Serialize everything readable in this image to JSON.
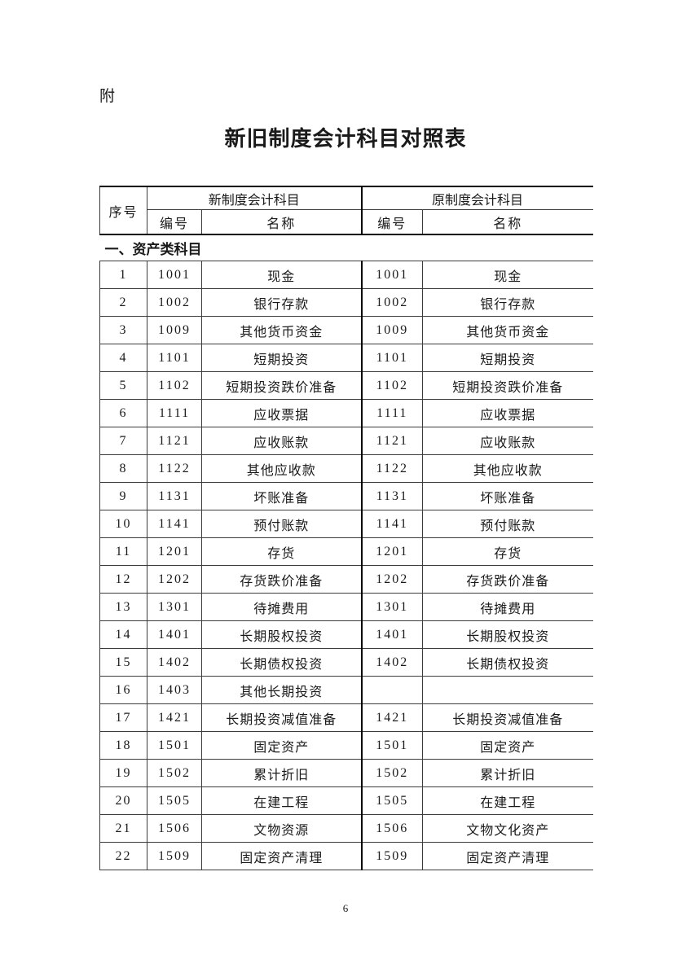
{
  "page": {
    "attachment_label": "附",
    "title": "新旧制度会计科目对照表",
    "page_number": "6"
  },
  "table": {
    "header": {
      "serial": "序号",
      "new_system": "新制度会计科目",
      "old_system": "原制度会计科目",
      "code": "编号",
      "name": "名称"
    },
    "section_title": "一、资产类科目",
    "rows": [
      {
        "no": "1",
        "new_code": "1001",
        "new_name": "现金",
        "old_code": "1001",
        "old_name": "现金"
      },
      {
        "no": "2",
        "new_code": "1002",
        "new_name": "银行存款",
        "old_code": "1002",
        "old_name": "银行存款"
      },
      {
        "no": "3",
        "new_code": "1009",
        "new_name": "其他货币资金",
        "old_code": "1009",
        "old_name": "其他货币资金"
      },
      {
        "no": "4",
        "new_code": "1101",
        "new_name": "短期投资",
        "old_code": "1101",
        "old_name": "短期投资"
      },
      {
        "no": "5",
        "new_code": "1102",
        "new_name": "短期投资跌价准备",
        "old_code": "1102",
        "old_name": "短期投资跌价准备"
      },
      {
        "no": "6",
        "new_code": "1111",
        "new_name": "应收票据",
        "old_code": "1111",
        "old_name": "应收票据"
      },
      {
        "no": "7",
        "new_code": "1121",
        "new_name": "应收账款",
        "old_code": "1121",
        "old_name": "应收账款"
      },
      {
        "no": "8",
        "new_code": "1122",
        "new_name": "其他应收款",
        "old_code": "1122",
        "old_name": "其他应收款"
      },
      {
        "no": "9",
        "new_code": "1131",
        "new_name": "坏账准备",
        "old_code": "1131",
        "old_name": "坏账准备"
      },
      {
        "no": "10",
        "new_code": "1141",
        "new_name": "预付账款",
        "old_code": "1141",
        "old_name": "预付账款"
      },
      {
        "no": "11",
        "new_code": "1201",
        "new_name": "存货",
        "old_code": "1201",
        "old_name": "存货"
      },
      {
        "no": "12",
        "new_code": "1202",
        "new_name": "存货跌价准备",
        "old_code": "1202",
        "old_name": "存货跌价准备"
      },
      {
        "no": "13",
        "new_code": "1301",
        "new_name": "待摊费用",
        "old_code": "1301",
        "old_name": "待摊费用"
      },
      {
        "no": "14",
        "new_code": "1401",
        "new_name": "长期股权投资",
        "old_code": "1401",
        "old_name": "长期股权投资"
      },
      {
        "no": "15",
        "new_code": "1402",
        "new_name": "长期债权投资",
        "old_code": "1402",
        "old_name": "长期债权投资"
      },
      {
        "no": "16",
        "new_code": "1403",
        "new_name": "其他长期投资",
        "old_code": "",
        "old_name": ""
      },
      {
        "no": "17",
        "new_code": "1421",
        "new_name": "长期投资减值准备",
        "old_code": "1421",
        "old_name": "长期投资减值准备"
      },
      {
        "no": "18",
        "new_code": "1501",
        "new_name": "固定资产",
        "old_code": "1501",
        "old_name": "固定资产"
      },
      {
        "no": "19",
        "new_code": "1502",
        "new_name": "累计折旧",
        "old_code": "1502",
        "old_name": "累计折旧"
      },
      {
        "no": "20",
        "new_code": "1505",
        "new_name": "在建工程",
        "old_code": "1505",
        "old_name": "在建工程"
      },
      {
        "no": "21",
        "new_code": "1506",
        "new_name": "文物资源",
        "old_code": "1506",
        "old_name": "文物文化资产"
      },
      {
        "no": "22",
        "new_code": "1509",
        "new_name": "固定资产清理",
        "old_code": "1509",
        "old_name": "固定资产清理"
      }
    ]
  }
}
